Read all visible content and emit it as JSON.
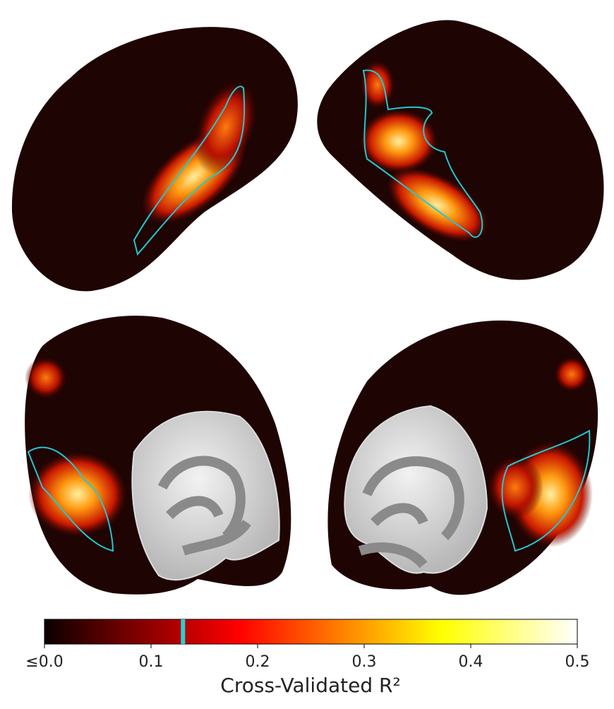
{
  "chart_data": {
    "type": "colorbar",
    "label": "Cross-Validated R²",
    "colormap": "hot",
    "xlim": [
      0,
      0.5
    ],
    "xticks": [
      {
        "value": 0,
        "label": "≤0.0"
      },
      0.1,
      0.2,
      0.3,
      0.4,
      0.5
    ],
    "threshold": 0.13,
    "threshold_color": "#22d3d8"
  }
}
